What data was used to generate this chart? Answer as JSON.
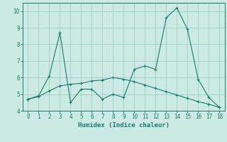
{
  "line1_x": [
    0,
    1,
    2,
    3,
    4,
    5,
    6,
    7,
    8,
    9,
    10,
    11,
    12,
    13,
    14,
    15,
    16,
    17,
    18
  ],
  "line1_y": [
    4.7,
    4.9,
    6.1,
    8.7,
    4.5,
    5.3,
    5.3,
    4.7,
    5.0,
    4.8,
    6.5,
    6.7,
    6.5,
    9.6,
    10.2,
    8.9,
    5.9,
    4.8,
    4.2
  ],
  "line2_x": [
    0,
    1,
    2,
    3,
    4,
    5,
    6,
    7,
    8,
    9,
    10,
    11,
    12,
    13,
    14,
    15,
    16,
    17,
    18
  ],
  "line2_y": [
    4.7,
    4.85,
    5.2,
    5.5,
    5.6,
    5.65,
    5.8,
    5.85,
    6.0,
    5.9,
    5.75,
    5.55,
    5.35,
    5.15,
    4.95,
    4.75,
    4.55,
    4.4,
    4.2
  ],
  "line_color": "#1a7a6e",
  "bg_color": "#cceae4",
  "grid_color": "#9ecec6",
  "xlabel": "Humidex (Indice chaleur)",
  "ylim": [
    4,
    10.5
  ],
  "xlim": [
    -0.5,
    18.5
  ],
  "yticks": [
    4,
    5,
    6,
    7,
    8,
    9,
    10
  ],
  "xticks": [
    0,
    1,
    2,
    3,
    4,
    5,
    6,
    7,
    8,
    9,
    10,
    11,
    12,
    13,
    14,
    15,
    16,
    17,
    18
  ]
}
